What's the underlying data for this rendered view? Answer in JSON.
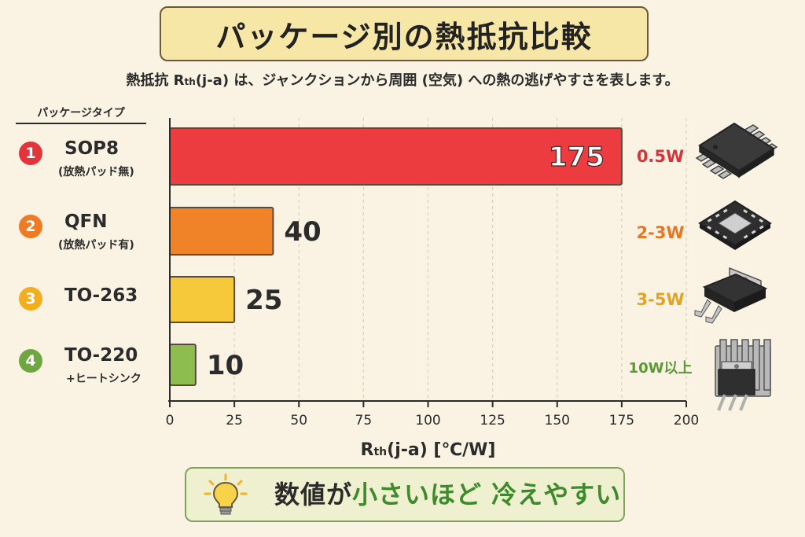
{
  "header": {
    "title": "パッケージ別の熱抵抗比較",
    "subtitle_pre": "熱抵抗 R",
    "subtitle_sub": "th",
    "subtitle_post": "(j-a) は、ジャンクションから周囲 (空気) への熱の逃げやすさを表します。"
  },
  "legend": {
    "column_header": "パッケージタイプ"
  },
  "packages": [
    {
      "num": "1",
      "name": "SOP8",
      "note": "(放熱パッド無)",
      "power": "0.5W",
      "color": "#e4343b",
      "icon": "sop8-chip-icon"
    },
    {
      "num": "2",
      "name": "QFN",
      "note": "(放熱パッド有)",
      "power": "2-3W",
      "color": "#ee7a24",
      "icon": "qfn-chip-icon"
    },
    {
      "num": "3",
      "name": "TO-263",
      "note": "",
      "power": "3-5W",
      "color": "#f2ae1c",
      "icon": "to263-package-icon"
    },
    {
      "num": "4",
      "name": "TO-220",
      "note": "+ヒートシンク",
      "power": "10W以上",
      "color": "#6ea63f",
      "icon": "to220-heatsink-icon"
    }
  ],
  "chart_data": {
    "type": "bar",
    "orientation": "horizontal",
    "categories": [
      "SOP8",
      "QFN",
      "TO-263",
      "TO-220"
    ],
    "values": [
      175,
      40,
      25,
      10
    ],
    "bar_colors": [
      "#ec3c40",
      "#f08228",
      "#f6c93a",
      "#8cbd4e"
    ],
    "xlabel_pre": "R",
    "xlabel_sub": "th",
    "xlabel_post": "(j-a) [℃/W]",
    "xlim": [
      0,
      200
    ],
    "xticks": [
      0,
      25,
      50,
      75,
      100,
      125,
      150,
      175,
      200
    ],
    "grid": "vertical dashed"
  },
  "footer": {
    "tip_icon": "lightbulb-icon",
    "tip_part1": "数値が",
    "tip_highlight1": "小さいほど",
    "tip_highlight2": "冷えやすい"
  }
}
